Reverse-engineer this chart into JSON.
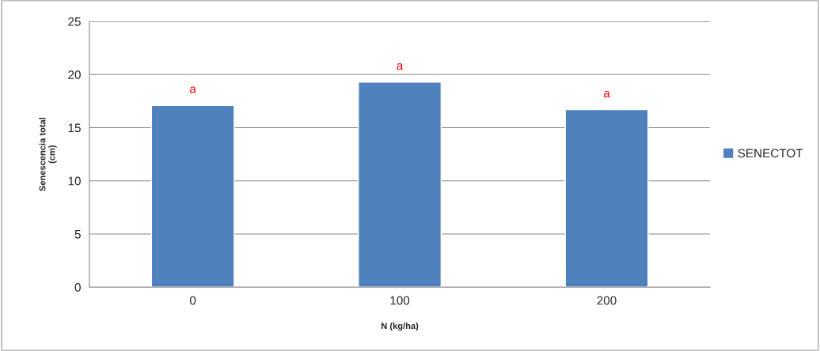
{
  "chart_data": {
    "type": "bar",
    "xlabel": "N (kg/ha)",
    "ylabel": "Senescencia total\n(cm)",
    "categories": [
      "0",
      "100",
      "200"
    ],
    "series": [
      {
        "name": "SENECTOT",
        "color": "#4f81bd",
        "values": [
          17.1,
          19.3,
          16.7
        ]
      }
    ],
    "ylim": [
      0,
      25
    ],
    "yticks": [
      0,
      5,
      10,
      15,
      20,
      25
    ],
    "grid": "y",
    "legend": "right",
    "annotations": [
      {
        "text": "a",
        "x": "0",
        "y": 17.1
      },
      {
        "text": "a",
        "x": "100",
        "y": 19.3
      },
      {
        "text": "a",
        "x": "200",
        "y": 16.7
      }
    ]
  }
}
